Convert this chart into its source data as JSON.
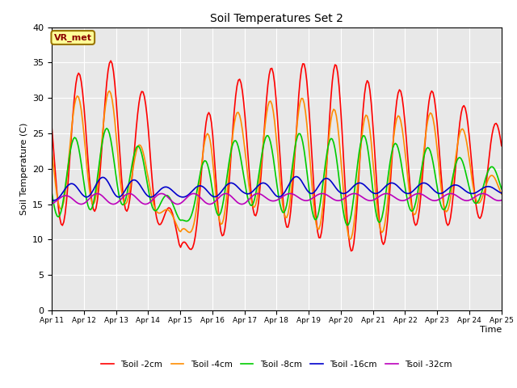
{
  "title": "Soil Temperatures Set 2",
  "xlabel": "Time",
  "ylabel": "Soil Temperature (C)",
  "ylim": [
    0,
    40
  ],
  "bg_color": "#e8e8e8",
  "grid_color": "white",
  "annotation_text": "VR_met",
  "annotation_color": "#8b0000",
  "annotation_bg": "#ffff99",
  "annotation_border": "#9b7500",
  "legend_labels": [
    "Tsoil -2cm",
    "Tsoil -4cm",
    "Tsoil -8cm",
    "Tsoil -16cm",
    "Tsoil -32cm"
  ],
  "line_colors": [
    "#ff0000",
    "#ff8c00",
    "#00cc00",
    "#0000cc",
    "#bb00bb"
  ],
  "line_widths": [
    1.2,
    1.2,
    1.2,
    1.2,
    1.2
  ],
  "xtick_labels": [
    "Apr 11",
    "Apr 12",
    "Apr 13",
    "Apr 14",
    "Apr 15",
    "Apr 16",
    "Apr 17",
    "Apr 18",
    "Apr 19",
    "Apr 20",
    "Apr 21",
    "Apr 22",
    "Apr 23",
    "Apr 24",
    "Apr 25"
  ],
  "n_days": 14,
  "tsoil_2cm_peaks": [
    31.0,
    34.0,
    35.5,
    30.0,
    8.8,
    31.0,
    33.0,
    34.5,
    35.0,
    34.7,
    32.0,
    31.0,
    31.0,
    28.5,
    26.0,
    10.0
  ],
  "tsoil_2cm_mins": [
    11.0,
    14.0,
    14.0,
    14.0,
    8.5,
    8.8,
    14.0,
    12.0,
    11.0,
    8.5,
    8.0,
    12.0,
    12.0,
    12.0,
    15.0,
    10.0
  ],
  "tsoil_4cm_peaks": [
    27.5,
    31.0,
    31.0,
    21.0,
    11.0,
    28.0,
    28.0,
    30.0,
    30.0,
    28.0,
    27.5,
    27.5,
    28.0,
    25.0,
    17.0,
    17.0
  ],
  "tsoil_4cm_mins": [
    14.0,
    15.0,
    15.0,
    15.0,
    11.0,
    11.0,
    15.0,
    13.5,
    12.0,
    10.0,
    10.0,
    13.5,
    13.5,
    15.0,
    15.5,
    16.0
  ],
  "tsoil_8cm_peaks": [
    23.0,
    25.0,
    26.0,
    22.0,
    13.0,
    24.0,
    24.0,
    25.0,
    25.0,
    24.0,
    25.0,
    23.0,
    23.0,
    21.0,
    20.0,
    17.0
  ],
  "tsoil_8cm_mins": [
    13.0,
    14.0,
    15.0,
    14.5,
    12.5,
    13.0,
    15.0,
    14.0,
    13.0,
    12.0,
    12.0,
    14.0,
    14.0,
    15.0,
    15.5,
    14.0
  ],
  "tsoil_16cm_peaks": [
    17.0,
    18.5,
    19.0,
    18.0,
    17.0,
    18.0,
    18.0,
    18.0,
    19.5,
    18.0,
    18.0,
    18.0,
    18.0,
    17.5,
    17.5,
    17.0
  ],
  "tsoil_16cm_mins": [
    15.5,
    16.0,
    16.0,
    16.0,
    16.0,
    16.0,
    16.5,
    16.0,
    16.5,
    16.5,
    16.5,
    16.5,
    16.5,
    16.5,
    16.5,
    16.5
  ],
  "tsoil_32cm_peaks": [
    16.0,
    16.5,
    16.5,
    16.5,
    16.5,
    16.5,
    16.5,
    16.5,
    16.5,
    16.5,
    16.5,
    16.5,
    16.5,
    16.5,
    16.5,
    16.5
  ],
  "tsoil_32cm_mins": [
    15.0,
    15.0,
    15.0,
    15.0,
    15.0,
    15.0,
    15.0,
    15.5,
    15.5,
    15.5,
    15.5,
    15.5,
    15.5,
    15.5,
    15.5,
    15.5
  ],
  "phase_shifts": [
    14,
    13,
    11,
    8,
    4
  ]
}
